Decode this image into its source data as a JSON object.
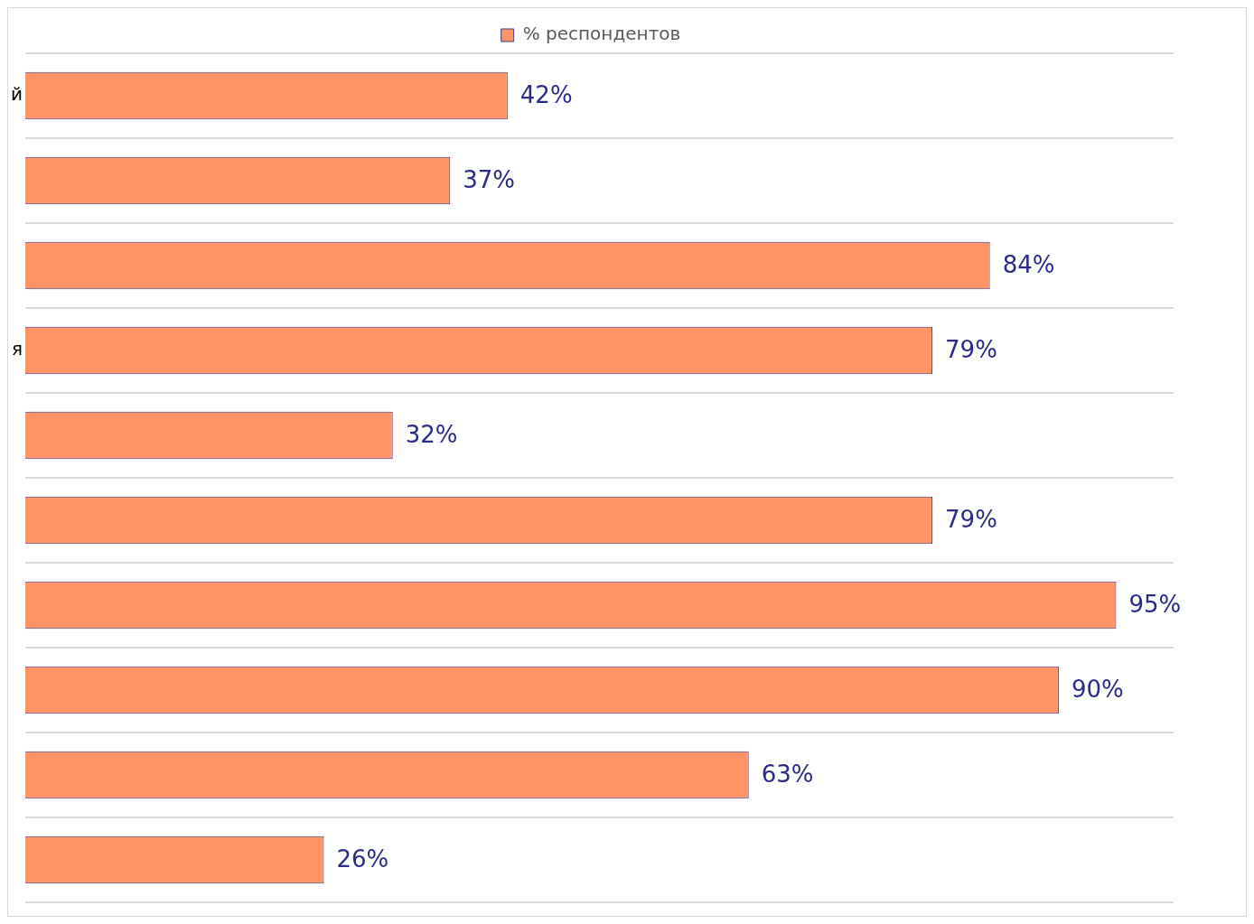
{
  "chart_data": {
    "type": "bar",
    "orientation": "horizontal",
    "categories": [
      "й",
      null,
      null,
      "я",
      null,
      null,
      null,
      null,
      null,
      null
    ],
    "series": [
      {
        "name": "% респондентов",
        "color": "#ff9566",
        "values": [
          42,
          37,
          84,
          79,
          32,
          79,
          95,
          90,
          63,
          26
        ]
      }
    ],
    "value_labels": [
      "42%",
      "37%",
      "84%",
      "79%",
      "32%",
      "79%",
      "95%",
      "90%",
      "63%",
      "26%"
    ],
    "data_labels": true,
    "tick_labels": "y",
    "grid": "y",
    "legend": "top"
  }
}
